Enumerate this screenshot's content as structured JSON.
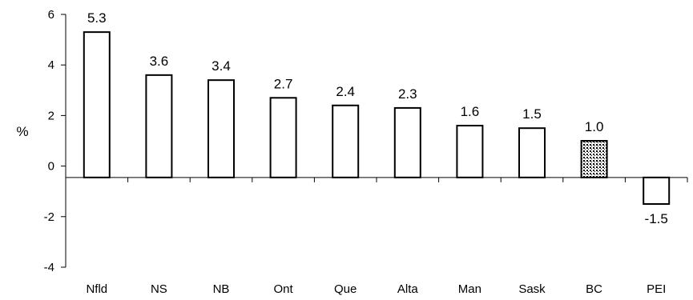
{
  "chart_data": {
    "type": "bar",
    "categories": [
      "Nfld",
      "NS",
      "NB",
      "Ont",
      "Que",
      "Alta",
      "Man",
      "Sask",
      "BC",
      "PEI"
    ],
    "values": [
      5.3,
      3.6,
      3.4,
      2.7,
      2.4,
      2.3,
      1.6,
      1.5,
      1.0,
      -1.5
    ],
    "value_labels": [
      "5.3",
      "3.6",
      "3.4",
      "2.7",
      "2.4",
      "2.3",
      "1.6",
      "1.5",
      "1.0",
      "-1.5"
    ],
    "ylabel": "%",
    "ylim": [
      -4,
      6
    ],
    "yticks": [
      -4,
      -2,
      0,
      2,
      4,
      6
    ],
    "ytick_labels": [
      "-4",
      "-2",
      "0",
      "2",
      "4",
      "6"
    ],
    "baseline": -0.45,
    "grid": false,
    "legend": "none",
    "highlight": {
      "category": "BC",
      "pattern": "dotted"
    },
    "colors": {
      "bar_fill": "#ffffff",
      "bar_stroke": "#000000",
      "highlight_fill": "#000000"
    }
  }
}
